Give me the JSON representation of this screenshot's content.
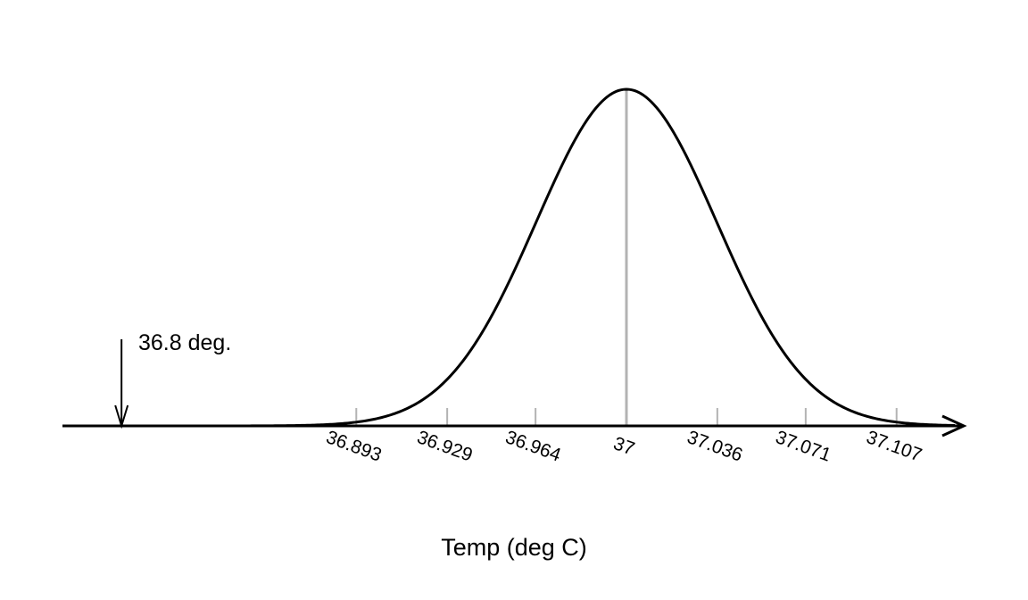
{
  "chart_data": {
    "type": "line",
    "description_kind": "normal-distribution-curve",
    "mean": 37,
    "sd": 0.0357,
    "xlabel": "Temp (deg C)",
    "ylabel": "",
    "tick_labels": [
      "36.893",
      "36.929",
      "36.964",
      "37",
      "37.036",
      "37.071",
      "37.107"
    ],
    "ticks": [
      36.893,
      36.929,
      36.964,
      37,
      37.036,
      37.071,
      37.107
    ],
    "xlim": [
      36.788,
      37.107
    ],
    "annotation": {
      "x": 36.8,
      "label": "36.8 deg."
    },
    "mean_line": true,
    "colors": {
      "curve": "#000000",
      "mean_line": "#b3b3b3",
      "ticks": "#b3b3b3"
    }
  }
}
